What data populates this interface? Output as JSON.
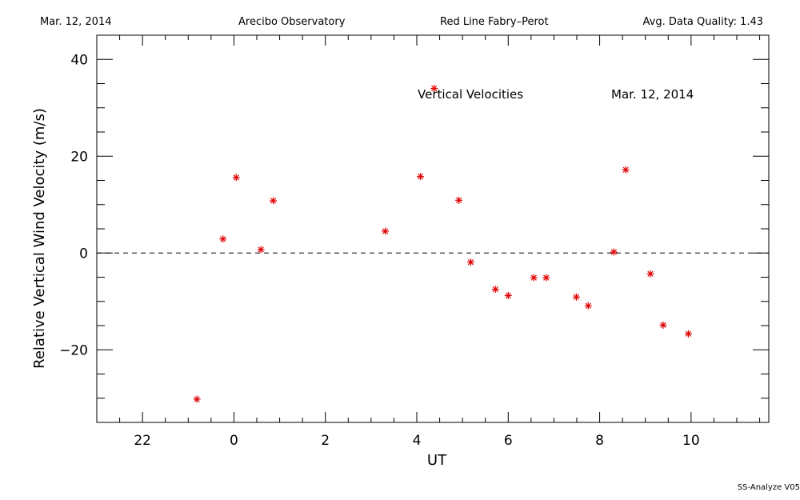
{
  "header": {
    "date": "Mar. 12, 2014",
    "observatory": "Arecibo Observatory",
    "instrument": "Red Line Fabry–Perot",
    "quality": "Avg. Data Quality: 1.43"
  },
  "footer": {
    "software": "SS-Analyze V05"
  },
  "chart_data": {
    "type": "scatter",
    "title": "",
    "xlabel": "UT",
    "ylabel": "Relative Vertical Wind Velocity (m/s)",
    "annotations": [
      "Vertical Velocities",
      "Mar. 12, 2014"
    ],
    "xlim": [
      21.0,
      35.7
    ],
    "ylim": [
      -35,
      45
    ],
    "x_unit_note": "",
    "x_ticks": [
      {
        "value": 22,
        "label": "22"
      },
      {
        "value": 24,
        "label": "0"
      },
      {
        "value": 26,
        "label": "2"
      },
      {
        "value": 28,
        "label": "4"
      },
      {
        "value": 30,
        "label": "6"
      },
      {
        "value": 32,
        "label": "8"
      },
      {
        "value": 34,
        "label": "10"
      }
    ],
    "y_ticks": [
      {
        "value": -20,
        "label": "−20"
      },
      {
        "value": 0,
        "label": "0"
      },
      {
        "value": 20,
        "label": "20"
      },
      {
        "value": 40,
        "label": "40"
      }
    ],
    "reference_line": 0,
    "marker_color": "#e00000",
    "series": [
      {
        "points": [
          [
            23.19,
            -30.2
          ],
          [
            23.76,
            2.9
          ],
          [
            24.05,
            15.6
          ],
          [
            24.59,
            0.7
          ],
          [
            24.86,
            10.8
          ],
          [
            27.31,
            4.5
          ],
          [
            28.08,
            15.8
          ],
          [
            28.38,
            34.0
          ],
          [
            28.92,
            10.9
          ],
          [
            29.18,
            -1.9
          ],
          [
            29.72,
            -7.5
          ],
          [
            30.0,
            -8.8
          ],
          [
            30.56,
            -5.1
          ],
          [
            30.83,
            -5.1
          ],
          [
            31.49,
            -9.1
          ],
          [
            31.75,
            -10.9
          ],
          [
            32.31,
            0.2
          ],
          [
            32.57,
            17.2
          ],
          [
            33.11,
            -4.3
          ],
          [
            33.39,
            -14.9
          ],
          [
            33.94,
            -16.7
          ]
        ]
      }
    ]
  }
}
